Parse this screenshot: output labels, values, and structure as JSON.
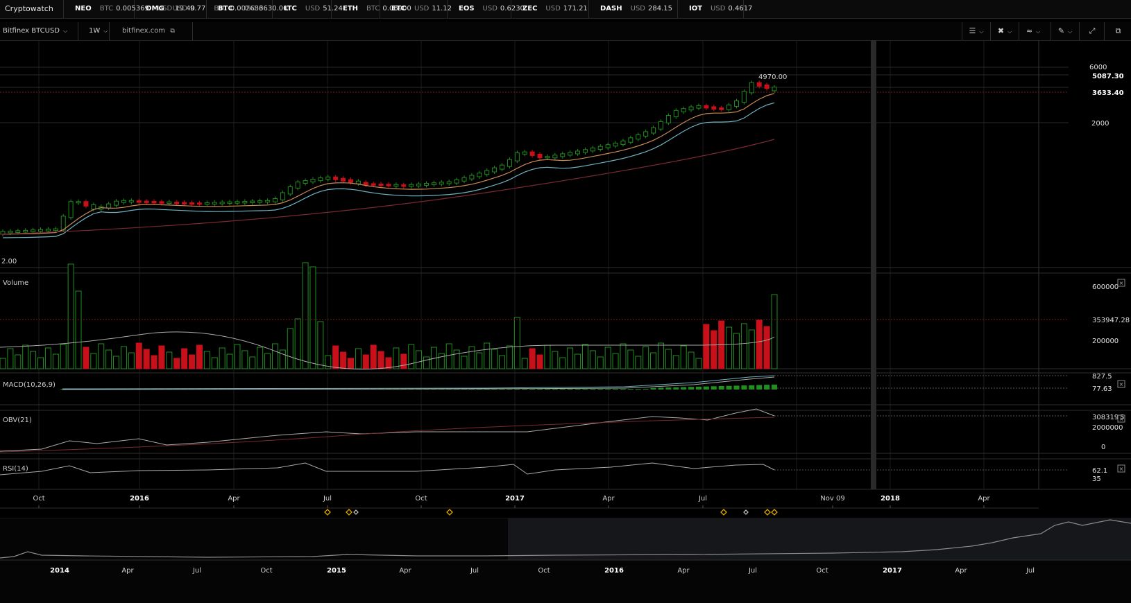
{
  "app": {
    "brand": "Cryptowatch"
  },
  "ticker": [
    {
      "symbol": "NEO",
      "quotes": [
        {
          "cur": "BTC",
          "val": "0.005369"
        },
        {
          "cur": "USD",
          "val": "19.40"
        }
      ]
    },
    {
      "symbol": "OMG",
      "quotes": [
        {
          "cur": "USD",
          "val": "9.77"
        },
        {
          "cur": "BTC",
          "val": "0.002686"
        }
      ]
    },
    {
      "symbol": "BTC",
      "quotes": [
        {
          "cur": "USD",
          "val": "3630.00"
        }
      ]
    },
    {
      "symbol": "LTC",
      "quotes": [
        {
          "cur": "USD",
          "val": "51.24"
        }
      ]
    },
    {
      "symbol": "ETH",
      "quotes": [
        {
          "cur": "BTC",
          "val": "0.06900"
        }
      ]
    },
    {
      "symbol": "ETC",
      "quotes": [
        {
          "cur": "USD",
          "val": "11.12"
        }
      ]
    },
    {
      "symbol": "EOS",
      "quotes": [
        {
          "cur": "USD",
          "val": "0.6230"
        }
      ]
    },
    {
      "symbol": "ZEC",
      "quotes": [
        {
          "cur": "USD",
          "val": "171.21"
        }
      ]
    },
    {
      "symbol": "DASH",
      "quotes": [
        {
          "cur": "USD",
          "val": "284.15"
        }
      ]
    },
    {
      "symbol": "IOT",
      "quotes": [
        {
          "cur": "USD",
          "val": "0.4617"
        }
      ]
    }
  ],
  "toolbar": {
    "market": "Bitfinex BTCUSD",
    "period": "1W",
    "exchange_link": "bitfinex.com",
    "tools": [
      "chart-type-icon",
      "crosshair-icon",
      "indicators-icon",
      "draw-pencil-icon",
      "fullscreen-icon",
      "external-window-icon"
    ]
  },
  "chart": {
    "price_axis": [
      "6000",
      "2000"
    ],
    "price_markers": {
      "high": "5087.30",
      "last": "3633.40"
    },
    "high_annotation": "4970.00",
    "low_label": "2.00",
    "volume": {
      "label": "Volume",
      "axis": [
        "600000",
        "200000"
      ],
      "last": "353947.28"
    },
    "macd": {
      "label": "MACD(10,26,9)",
      "values": [
        "827.5",
        "77.63"
      ]
    },
    "obv": {
      "label": "OBV(21)",
      "last": "308319",
      "last_suffix": "5",
      "axis": [
        "2000000",
        "0"
      ]
    },
    "rsi": {
      "label": "RSI(14)",
      "values": [
        "62.1",
        "35"
      ]
    },
    "time_axis": [
      "Oct",
      "2016",
      "Apr",
      "Jul",
      "Oct",
      "2017",
      "Apr",
      "Jul",
      "Nov 09",
      "2018",
      "Apr"
    ],
    "time_axis_bold": [
      "2016",
      "2017",
      "2018"
    ],
    "cursor_label": "Nov 09",
    "navigator_axis": [
      "2014",
      "Apr",
      "Jul",
      "Oct",
      "2015",
      "Apr",
      "Jul",
      "Oct",
      "2016",
      "Apr",
      "Jul",
      "Oct",
      "2017",
      "Apr",
      "Jul"
    ],
    "navigator_bold": [
      "2014",
      "2015",
      "2016",
      "2017"
    ],
    "colors": {
      "up": "#1f8f1f",
      "down": "#c8101a",
      "ema_fast": "#c98a55",
      "ema_mid": "#6fb3c0",
      "ema_slow": "#7a2a33"
    }
  }
}
